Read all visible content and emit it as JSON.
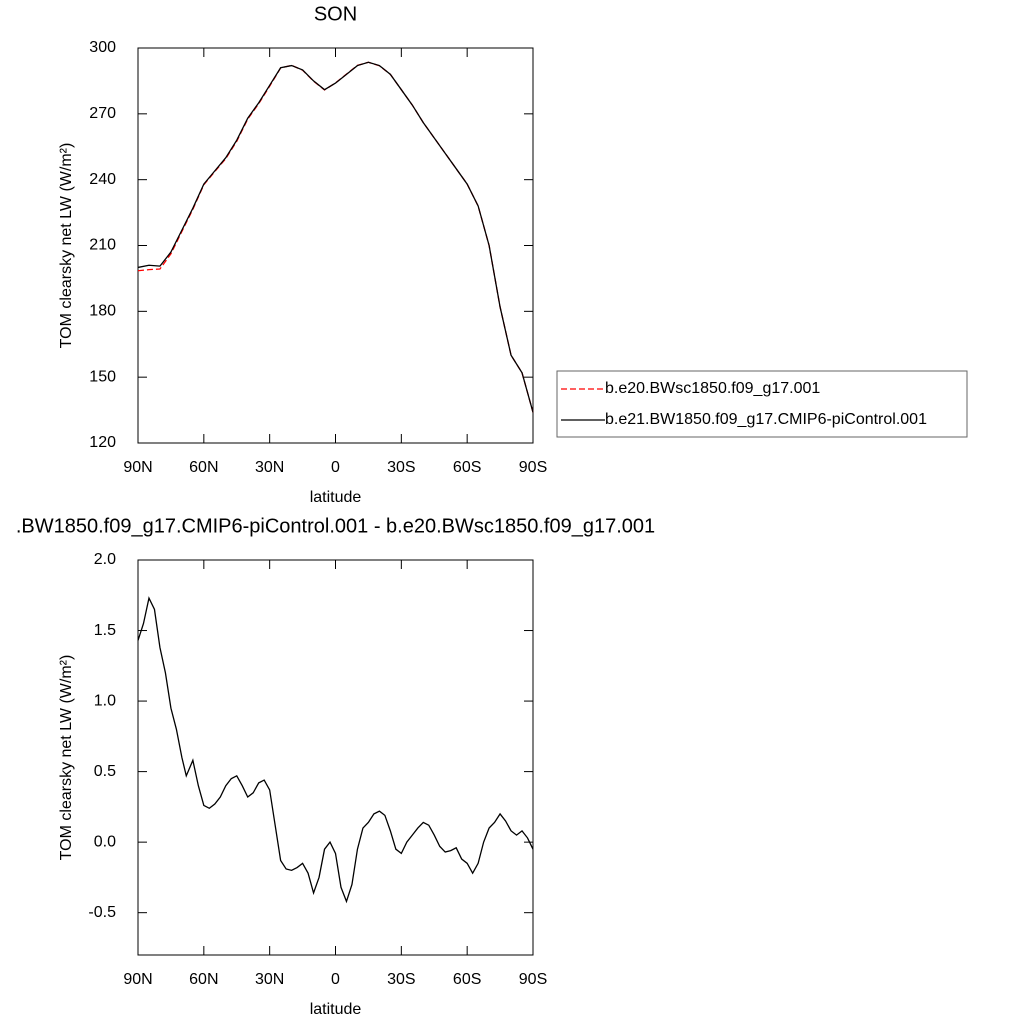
{
  "chart_data": [
    {
      "type": "line",
      "title": "SON",
      "xlabel": "latitude",
      "ylabel": "TOM clearsky net LW (W/m²)",
      "x": [
        90,
        85,
        80,
        75,
        70,
        65,
        60,
        55,
        50,
        45,
        40,
        35,
        30,
        25,
        20,
        15,
        10,
        5,
        0,
        -5,
        -10,
        -15,
        -20,
        -25,
        -30,
        -35,
        -40,
        -45,
        -50,
        -55,
        -60,
        -65,
        -70,
        -75,
        -80,
        -85,
        -90
      ],
      "series": [
        {
          "name": "b.e20.BWsc1850.f09_g17.001",
          "color": "#ff0000",
          "dash": true,
          "values": [
            198.5,
            199,
            199.3,
            206.2,
            216.4,
            226.5,
            237.7,
            243.7,
            249.6,
            257.5,
            267.6,
            274.6,
            282.6,
            290.9,
            292.1,
            289.9,
            284.9,
            280.9,
            284.1,
            288.1,
            292.1,
            293.5,
            291.9,
            288,
            281,
            274,
            266,
            259,
            252,
            245,
            238,
            228,
            210,
            182,
            160,
            152,
            134
          ]
        },
        {
          "name": "b.e21.BW1850.f09_g17.CMIP6-piControl.001",
          "color": "#000000",
          "dash": false,
          "values": [
            200,
            201,
            200.6,
            207,
            217,
            227,
            238,
            244,
            250,
            258,
            268,
            275,
            283,
            291,
            292,
            290,
            285,
            281,
            284,
            288,
            292,
            293.5,
            292,
            288,
            281,
            274,
            266,
            259,
            252,
            245,
            238,
            228,
            210,
            182,
            160,
            152,
            134
          ]
        }
      ],
      "xlim": [
        90,
        -90
      ],
      "xticks": [
        {
          "value": 90,
          "label": "90N"
        },
        {
          "value": 60,
          "label": "60N"
        },
        {
          "value": 30,
          "label": "30N"
        },
        0,
        {
          "value": -30,
          "label": "30S"
        },
        {
          "value": -60,
          "label": "60S"
        },
        {
          "value": -90,
          "label": "90S"
        }
      ],
      "ylim": [
        120,
        300
      ],
      "yticks": [
        120,
        150,
        180,
        210,
        240,
        270,
        300
      ],
      "legend": "right"
    },
    {
      "type": "line",
      "title": ".BW1850.f09_g17.CMIP6-piControl.001 - b.e20.BWsc1850.f09_g17.001",
      "xlabel": "latitude",
      "ylabel": "TOM clearsky net LW (W/m²)",
      "x": [
        90,
        87.5,
        85,
        82.5,
        80,
        77.5,
        75,
        72.5,
        70,
        68,
        65,
        62.5,
        60,
        57.5,
        55,
        52.5,
        50,
        47.5,
        45,
        42.5,
        40,
        37.5,
        35,
        32.5,
        30,
        27.5,
        25,
        22.5,
        20,
        17.5,
        15,
        12.5,
        10,
        7.5,
        5,
        2.5,
        0,
        -2.5,
        -5,
        -7.5,
        -10,
        -12.5,
        -15,
        -17.5,
        -20,
        -22.5,
        -25,
        -27.5,
        -30,
        -32.5,
        -35,
        -37.5,
        -40,
        -42.5,
        -45,
        -47.5,
        -50,
        -52.5,
        -55,
        -57.5,
        -60,
        -62.5,
        -65,
        -67.5,
        -70,
        -72.5,
        -75,
        -77.5,
        -80,
        -82.5,
        -85,
        -87.5,
        -90
      ],
      "series": [
        {
          "color": "#000000",
          "dash": false,
          "values": [
            1.43,
            1.55,
            1.73,
            1.65,
            1.38,
            1.2,
            0.95,
            0.8,
            0.6,
            0.47,
            0.58,
            0.4,
            0.26,
            0.24,
            0.27,
            0.32,
            0.4,
            0.45,
            0.47,
            0.4,
            0.32,
            0.35,
            0.42,
            0.44,
            0.37,
            0.12,
            -0.13,
            -0.19,
            -0.2,
            -0.18,
            -0.15,
            -0.22,
            -0.36,
            -0.25,
            -0.05,
            0.0,
            -0.08,
            -0.32,
            -0.42,
            -0.3,
            -0.05,
            0.1,
            0.14,
            0.2,
            0.22,
            0.19,
            0.08,
            -0.05,
            -0.08,
            0.0,
            0.05,
            0.1,
            0.14,
            0.12,
            0.05,
            -0.03,
            -0.07,
            -0.06,
            -0.04,
            -0.12,
            -0.15,
            -0.22,
            -0.15,
            0.0,
            0.1,
            0.14,
            0.2,
            0.15,
            0.08,
            0.05,
            0.08,
            0.03,
            -0.05
          ]
        }
      ],
      "xlim": [
        90,
        -90
      ],
      "xticks": [
        {
          "value": 90,
          "label": "90N"
        },
        {
          "value": 60,
          "label": "60N"
        },
        {
          "value": 30,
          "label": "30N"
        },
        0,
        {
          "value": -30,
          "label": "30S"
        },
        {
          "value": -60,
          "label": "60S"
        },
        {
          "value": -90,
          "label": "90S"
        }
      ],
      "ylim": [
        -0.8,
        2.0
      ],
      "yticks": [
        -0.5,
        {
          "value": 0,
          "label": "0.0"
        },
        0.5,
        {
          "value": 1,
          "label": "1.0"
        },
        1.5,
        {
          "value": 2,
          "label": "2.0"
        }
      ]
    }
  ]
}
